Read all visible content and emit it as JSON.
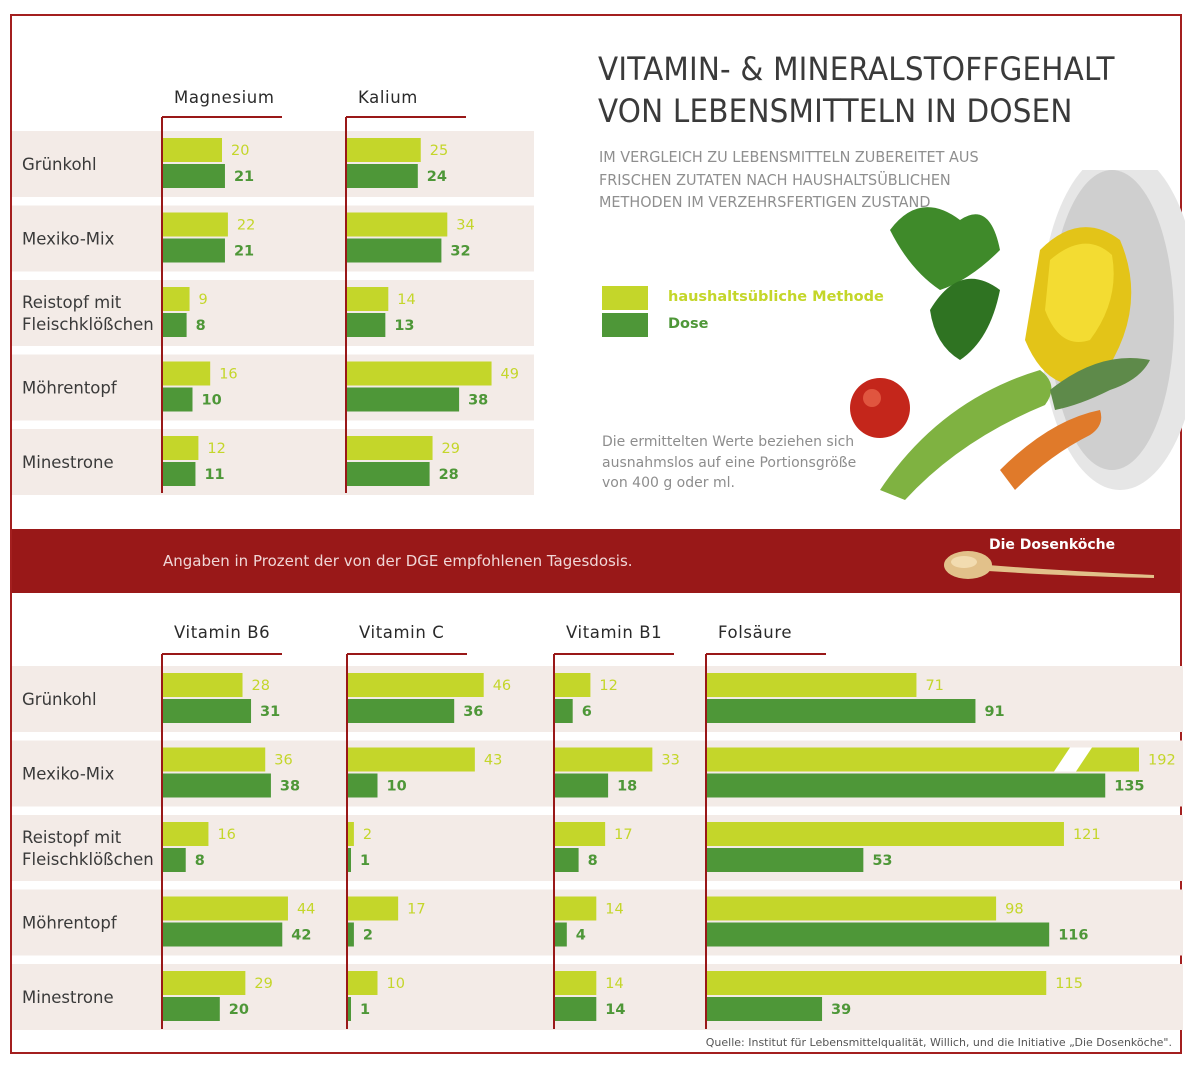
{
  "title": {
    "line1": "VITAMIN- & MINERALSTOFFGEHALT",
    "line2": "VON LEBENSMITTELN IN DOSEN"
  },
  "subtitle": {
    "line1": "IM VERGLEICH ZU LEBENSMITTELN ZUBEREITET AUS",
    "line2": "FRISCHEN ZUTATEN NACH HAUSHALTSÜBLICHEN",
    "line3": "METHODEN IM VERZEHRSFERTIGEN ZUSTAND"
  },
  "legend": {
    "items": [
      {
        "label": "haushaltsübliche Methode",
        "color": "#c4d62a"
      },
      {
        "label": "Dose",
        "color": "#4e9738"
      }
    ]
  },
  "note": {
    "line1": "Die ermittelten Werte beziehen sich",
    "line2": "ausnahmslos auf eine Portionsgröße",
    "line3": "von 400 g oder ml."
  },
  "banner": {
    "text": "Angaben in Prozent der von der  DGE empfohlenen Tagesdosis.",
    "brand": "Die Dosenköche"
  },
  "source": "Quelle: Institut für Lebensmittelqualität, Willich, und die Initiative „Die Dosenköche\".",
  "colors": {
    "light_green": "#c4d62a",
    "dark_green": "#4e9738",
    "red": "#991818",
    "row_bg": "#f3ebe7"
  },
  "chart_data": [
    {
      "type": "bar",
      "orientation": "horizontal",
      "categories": [
        "Grünkohl",
        "Mexiko-Mix",
        "Reistopf mit Fleischklößchen",
        "Möhrentopf",
        "Minestrone"
      ],
      "category_lines": [
        [
          "Grünkohl"
        ],
        [
          "Mexiko-Mix"
        ],
        [
          "Reistopf mit",
          "Fleischklößchen"
        ],
        [
          "Möhrentopf"
        ],
        [
          "Minestrone"
        ]
      ],
      "panels": [
        {
          "name": "Magnesium",
          "series": [
            {
              "name": "haushaltsübliche Methode",
              "values": [
                20,
                22,
                9,
                16,
                12
              ]
            },
            {
              "name": "Dose",
              "values": [
                21,
                21,
                8,
                10,
                11
              ]
            }
          ]
        },
        {
          "name": "Kalium",
          "series": [
            {
              "name": "haushaltsübliche Methode",
              "values": [
                25,
                34,
                14,
                49,
                29
              ]
            },
            {
              "name": "Dose",
              "values": [
                24,
                32,
                13,
                38,
                28
              ]
            }
          ]
        }
      ],
      "unit": "% der von der DGE empfohlenen Tagesdosis",
      "legend": "right"
    },
    {
      "type": "bar",
      "orientation": "horizontal",
      "categories": [
        "Grünkohl",
        "Mexiko-Mix",
        "Reistopf mit Fleischklößchen",
        "Möhrentopf",
        "Minestrone"
      ],
      "category_lines": [
        [
          "Grünkohl"
        ],
        [
          "Mexiko-Mix"
        ],
        [
          "Reistopf mit",
          "Fleischklößchen"
        ],
        [
          "Möhrentopf"
        ],
        [
          "Minestrone"
        ]
      ],
      "panels": [
        {
          "name": "Vitamin B6",
          "series": [
            {
              "name": "haushaltsübliche Methode",
              "values": [
                28,
                36,
                16,
                44,
                29
              ]
            },
            {
              "name": "Dose",
              "values": [
                31,
                38,
                8,
                42,
                20
              ]
            }
          ]
        },
        {
          "name": "Vitamin C",
          "series": [
            {
              "name": "haushaltsübliche Methode",
              "values": [
                46,
                43,
                2,
                17,
                10
              ]
            },
            {
              "name": "Dose",
              "values": [
                36,
                10,
                1,
                2,
                1
              ]
            }
          ]
        },
        {
          "name": "Vitamin B1",
          "series": [
            {
              "name": "haushaltsübliche Methode",
              "values": [
                12,
                33,
                17,
                14,
                14
              ]
            },
            {
              "name": "Dose",
              "values": [
                6,
                18,
                8,
                4,
                14
              ]
            }
          ]
        },
        {
          "name": "Folsäure",
          "axis_break_values": [
            192
          ],
          "series": [
            {
              "name": "haushaltsübliche Methode",
              "values": [
                71,
                192,
                121,
                98,
                115
              ]
            },
            {
              "name": "Dose",
              "values": [
                91,
                135,
                53,
                116,
                39
              ]
            }
          ]
        }
      ],
      "unit": "% der von der DGE empfohlenen Tagesdosis",
      "legend": "right"
    }
  ]
}
